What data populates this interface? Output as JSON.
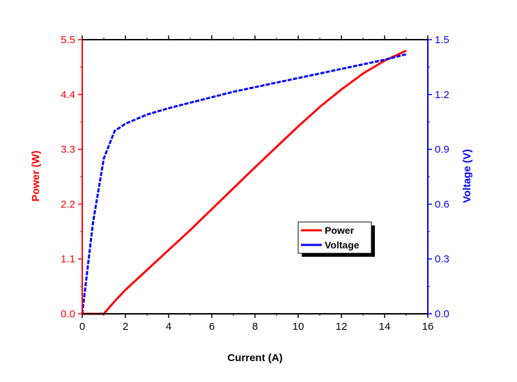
{
  "chart_data": {
    "type": "line",
    "title": "",
    "xlabel": "Current (A)",
    "ylabel_left": "Power (W)",
    "ylabel_right": "Voltage (V)",
    "xlim": [
      0,
      16
    ],
    "ylim_left": [
      0,
      5.5
    ],
    "ylim_right": [
      0,
      1.5
    ],
    "x_ticks": [
      "0",
      "2",
      "4",
      "6",
      "8",
      "10",
      "12",
      "14",
      "16"
    ],
    "y_left_ticks": [
      "0.0",
      "1.1",
      "2.2",
      "3.3",
      "4.4",
      "5.5"
    ],
    "y_right_ticks": [
      "0.0",
      "0.3",
      "0.6",
      "0.9",
      "1.2",
      "1.5"
    ],
    "grid": false,
    "legend_position": "center-right",
    "colors": {
      "power": "#ff0000",
      "voltage": "#0000ff",
      "axis": "#000000"
    },
    "series": [
      {
        "name": "Power",
        "axis": "left",
        "color": "#ff0000",
        "style": "solid",
        "x": [
          0,
          0.5,
          1.0,
          1.5,
          2.0,
          3.0,
          4.0,
          5.0,
          6.0,
          7.0,
          8.0,
          9.0,
          10.0,
          11.0,
          12.0,
          13.0,
          14.0,
          15.0
        ],
        "y": [
          0.0,
          0.0,
          0.0,
          0.25,
          0.48,
          0.88,
          1.28,
          1.68,
          2.1,
          2.52,
          2.94,
          3.35,
          3.76,
          4.15,
          4.5,
          4.82,
          5.08,
          5.28
        ]
      },
      {
        "name": "Voltage",
        "axis": "right",
        "color": "#0000ff",
        "style": "dashed",
        "x": [
          0,
          0.5,
          1.0,
          1.5,
          2.0,
          3.0,
          4.0,
          5.0,
          6.0,
          7.0,
          8.0,
          9.0,
          10.0,
          11.0,
          12.0,
          13.0,
          14.0,
          15.0
        ],
        "y": [
          0.0,
          0.5,
          0.85,
          1.0,
          1.04,
          1.09,
          1.125,
          1.155,
          1.185,
          1.215,
          1.24,
          1.265,
          1.29,
          1.315,
          1.34,
          1.365,
          1.39,
          1.42
        ]
      }
    ]
  }
}
